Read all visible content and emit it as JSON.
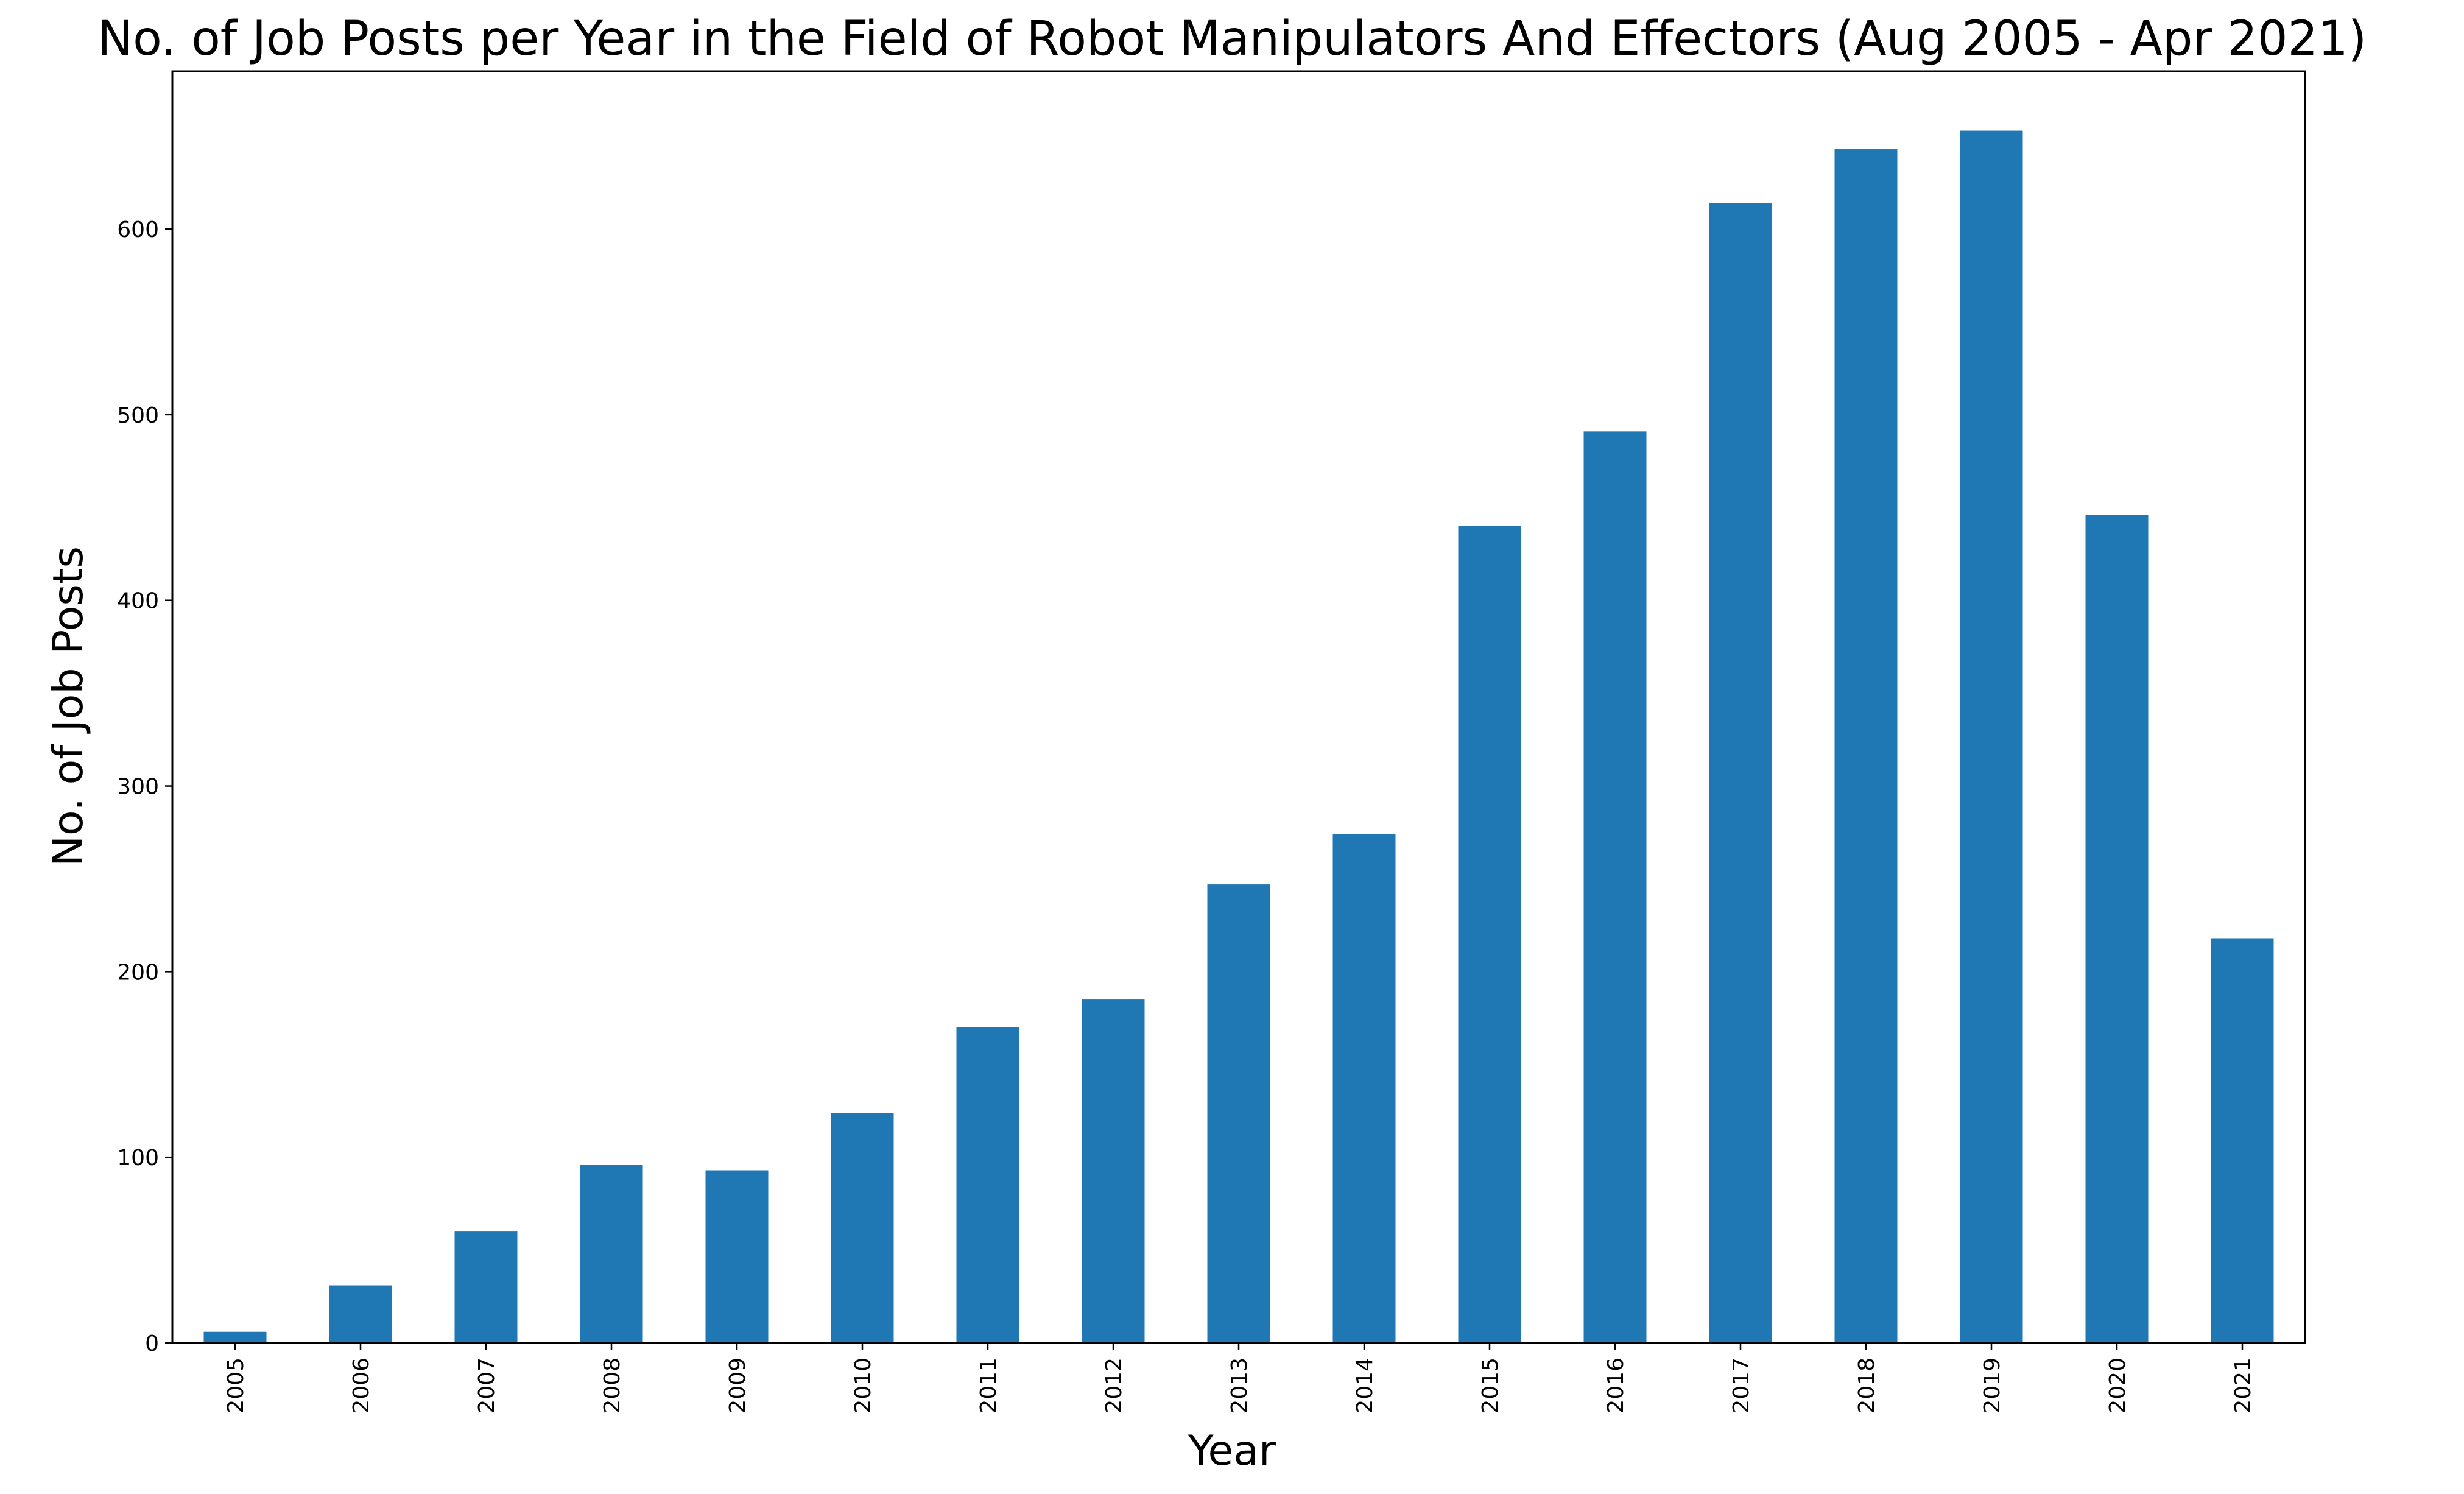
{
  "chart_data": {
    "type": "bar",
    "title": "No. of Job Posts per Year in the Field of Robot Manipulators And Effectors (Aug 2005 - Apr 2021)",
    "xlabel": "Year",
    "ylabel": "No. of Job Posts",
    "categories": [
      "2005",
      "2006",
      "2007",
      "2008",
      "2009",
      "2010",
      "2011",
      "2012",
      "2013",
      "2014",
      "2015",
      "2016",
      "2017",
      "2018",
      "2019",
      "2020",
      "2021"
    ],
    "values": [
      6,
      31,
      60,
      96,
      93,
      124,
      170,
      185,
      247,
      274,
      440,
      491,
      614,
      643,
      653,
      446,
      218
    ],
    "ylim": [
      0,
      685
    ],
    "yticks": [
      0,
      100,
      200,
      300,
      400,
      500,
      600
    ],
    "bar_color": "#1f77b4",
    "grid": false,
    "legend": "none",
    "x_tick_rotation": "vertical"
  }
}
